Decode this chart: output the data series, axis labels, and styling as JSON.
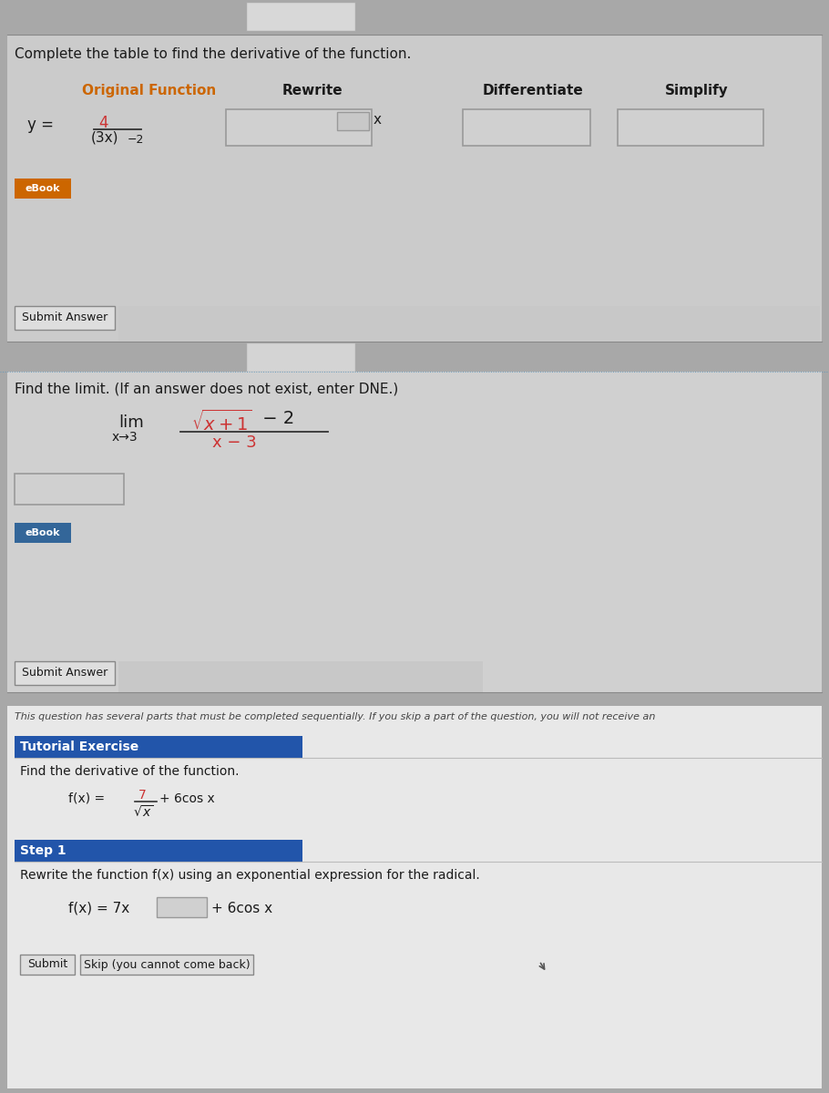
{
  "outer_bg": "#a8a8a8",
  "panel1_bg": "#cbcbcb",
  "panel2_bg": "#d0d0d0",
  "panel3_bg": "#e8e8e8",
  "title1": "Complete the table to find the derivative of the function.",
  "col_headers": [
    "Original Function",
    "Rewrite",
    "Differentiate",
    "Simplify"
  ],
  "col_header_color_0": "#cc6600",
  "col_header_color_rest": "#1a1a1a",
  "submit_btn1": "Submit Answer",
  "submit_btn2": "Submit Answer",
  "submit_btn3": "Submit",
  "skip_btn": "Skip (you cannot come back)",
  "title2": "Find the limit. (If an answer does not exist, enter DNE.)",
  "notice_text": "This question has several parts that must be completed sequentially. If you skip a part of the question, you will not receive an",
  "tutorial_label": "Tutorial Exercise",
  "tutorial_bg": "#2255aa",
  "find_deriv_text": "Find the derivative of the function.",
  "step1_label": "Step 1",
  "step1_bg": "#2255aa",
  "step1_text": "Rewrite the function f(x) using an exponential expression for the radical.",
  "ebook_orange": "#cc6600",
  "ebook_blue": "#336699",
  "input_bg": "#d0d0d0",
  "input_border": "#999999",
  "box_bg": "#d0d0d0"
}
